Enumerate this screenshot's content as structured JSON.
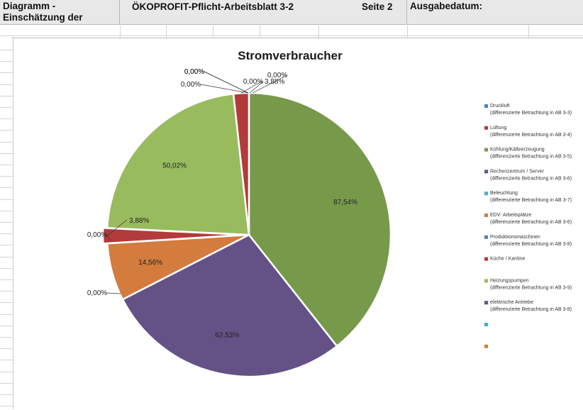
{
  "header": {
    "cell1": "Diagramm - Einschätzung der",
    "cell2": "ÖKOPROFIT-Pflicht-Arbeitsblatt 3-2",
    "cell3": "Seite 2",
    "cell4": "Ausgabedatum:"
  },
  "chart_data": {
    "type": "pie",
    "title": "Stromverbraucher",
    "slices": [
      {
        "label": "87,54%",
        "value": 87.54,
        "color": "#77994a"
      },
      {
        "label": "62,53%",
        "value": 62.53,
        "color": "#645186"
      },
      {
        "label": "0,00%",
        "value": 0,
        "color": "#4f81bd"
      },
      {
        "label": "14,56%",
        "value": 14.56,
        "color": "#d47b3e"
      },
      {
        "label": "0,00%",
        "value": 0,
        "color": "#4bacc6"
      },
      {
        "label": "3,88%",
        "value": 3.88,
        "color": "#b43b3b"
      },
      {
        "label": "0,00%",
        "value": 0,
        "color": "#4f81bd"
      },
      {
        "label": "50,02%",
        "value": 50.02,
        "color": "#98bb5e"
      },
      {
        "label": "0,00%",
        "value": 0,
        "color": "#4f81bd"
      },
      {
        "label": "0,00%",
        "value": 0,
        "color": "#4bacc6"
      },
      {
        "label": "0,00%",
        "value": 0,
        "color": "#d47b3e"
      },
      {
        "label": "0,00%",
        "value": 0,
        "color": "#4f81bd"
      },
      {
        "label": "3,88%",
        "value": 3.88,
        "color": "#b43b3b"
      }
    ],
    "legend_placement": "right",
    "legend": [
      {
        "name": "Druckluft",
        "sub": "(differenzierte Betrachtung in AB 3-3)",
        "color": "#4f81bd"
      },
      {
        "name": "Lüftung",
        "sub": "(differenzierte Betrachtung in AB 3-4)",
        "color": "#b43b3b"
      },
      {
        "name": "Kühlung/Kälteerzeugung",
        "sub": "(differenzierte Betrachtung in AB 3-5)",
        "color": "#77994a"
      },
      {
        "name": "Rechenzentrum / Server",
        "sub": "(differenzierte Betrachtung in AB 3-6)",
        "color": "#645186"
      },
      {
        "name": "Beleuchtung",
        "sub": "(differenzierte Betrachtung in AB 3-7)",
        "color": "#4bacc6"
      },
      {
        "name": "EDV- Arbeitsplätze",
        "sub": "(differenzierte Betrachtung in AB 3-6)",
        "color": "#d47b3e"
      },
      {
        "name": "Produktionsmaschinen",
        "sub": "(differenzierte Betrachtung in AB 3-8)",
        "color": "#4f81bd"
      },
      {
        "name": "Küche / Kantine",
        "sub": "",
        "color": "#b43b3b"
      },
      {
        "name": "Heizungspumpen",
        "sub": "(differenzierte Betrachtung in AB 3-9)",
        "color": "#98bb5e"
      },
      {
        "name": "elektrische Antriebe",
        "sub": "(differenzierte Betrachtung in AB 3-8)",
        "color": "#645186"
      },
      {
        "name": "",
        "sub": "",
        "color": "#4bacc6"
      },
      {
        "name": "",
        "sub": "",
        "color": "#d47b3e"
      }
    ]
  }
}
